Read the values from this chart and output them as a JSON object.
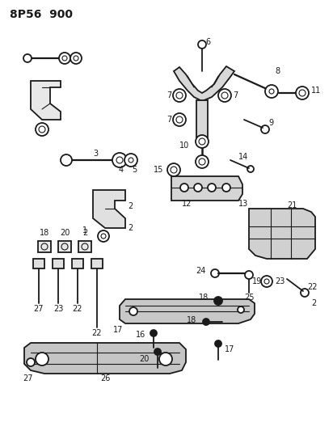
{
  "title": "8P56 900",
  "bg": "#ffffff",
  "fg": "#1a1a1a",
  "figsize": [
    4.12,
    5.33
  ],
  "dpi": 100,
  "lw_main": 1.3,
  "lw_thin": 0.8,
  "lw_thick": 1.8,
  "fontsize_label": 7,
  "fontsize_title": 10
}
